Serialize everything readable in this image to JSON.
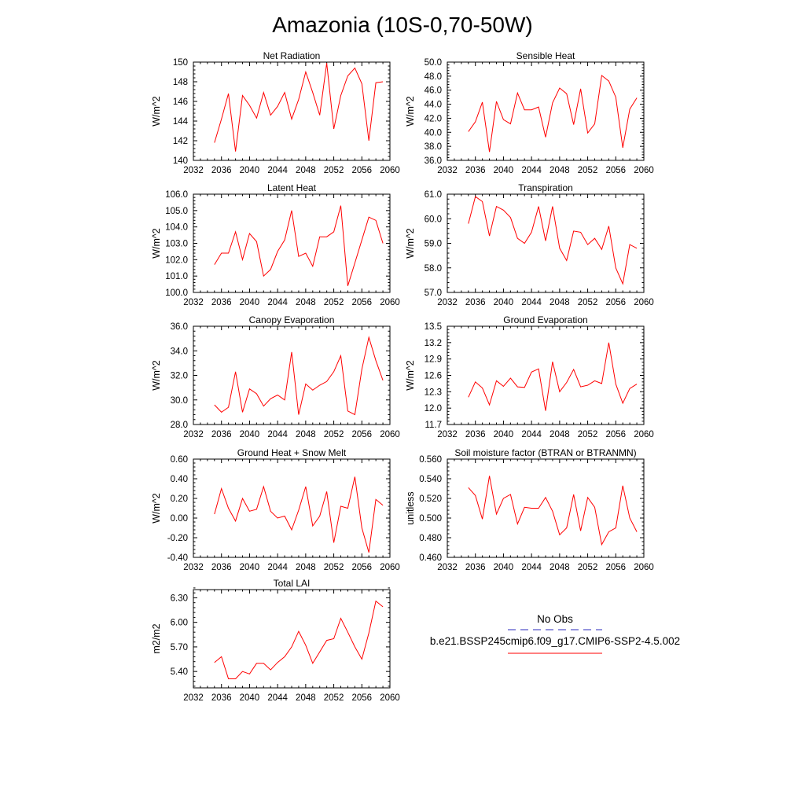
{
  "figure": {
    "title": "Amazonia (10S-0,70-50W)"
  },
  "legend": {
    "obs_label": "No Obs",
    "obs_color": "#2b2bbd",
    "model_label": "b.e21.BSSP245cmip6.f09_g17.CMIP6-SSP2-4.5.002",
    "model_color": "#ff0000"
  },
  "chart_data": [
    {
      "type": "line",
      "title": "Net Radiation",
      "ylabel": "W/m^2",
      "xlim": [
        2032,
        2060
      ],
      "ylim": [
        140,
        150
      ],
      "xticks": [
        2032,
        2036,
        2040,
        2044,
        2048,
        2052,
        2056,
        2060
      ],
      "xtick_labels": [
        "2032",
        "2036",
        "2040",
        "2044",
        "2048",
        "2052",
        "2056",
        "2060"
      ],
      "yticks": [
        140,
        142,
        144,
        146,
        148,
        150
      ],
      "ytick_labels": [
        "140",
        "142",
        "144",
        "146",
        "148",
        "150"
      ],
      "series": [
        {
          "name": "b.e21.BSSP245cmip6.f09_g17.CMIP6-SSP2-4.5.002",
          "color": "#ff0000",
          "x": [
            2035,
            2036,
            2037,
            2038,
            2039,
            2040,
            2041,
            2042,
            2043,
            2044,
            2045,
            2046,
            2047,
            2048,
            2049,
            2050,
            2051,
            2052,
            2053,
            2054,
            2055,
            2056,
            2057,
            2058,
            2059
          ],
          "y": [
            141.8,
            144.2,
            146.8,
            140.9,
            146.6,
            145.6,
            144.3,
            146.9,
            144.6,
            145.5,
            146.9,
            144.2,
            146.2,
            149.0,
            146.9,
            144.6,
            149.9,
            143.2,
            146.6,
            148.6,
            149.4,
            147.8,
            142.0,
            147.9,
            148.0
          ]
        }
      ]
    },
    {
      "type": "line",
      "title": "Sensible Heat",
      "ylabel": "W/m^2",
      "xlim": [
        2032,
        2060
      ],
      "ylim": [
        36.0,
        50.0
      ],
      "xticks": [
        2032,
        2036,
        2040,
        2044,
        2048,
        2052,
        2056,
        2060
      ],
      "xtick_labels": [
        "2032",
        "2036",
        "2040",
        "2044",
        "2048",
        "2052",
        "2056",
        "2060"
      ],
      "yticks": [
        36,
        38,
        40,
        42,
        44,
        46,
        48,
        50
      ],
      "ytick_labels": [
        "36.0",
        "38.0",
        "40.0",
        "42.0",
        "44.0",
        "46.0",
        "48.0",
        "50.0"
      ],
      "series": [
        {
          "name": "b.e21.BSSP245cmip6.f09_g17.CMIP6-SSP2-4.5.002",
          "color": "#ff0000",
          "x": [
            2035,
            2036,
            2037,
            2038,
            2039,
            2040,
            2041,
            2042,
            2043,
            2044,
            2045,
            2046,
            2047,
            2048,
            2049,
            2050,
            2051,
            2052,
            2053,
            2054,
            2055,
            2056,
            2057,
            2058,
            2059
          ],
          "y": [
            40.1,
            41.5,
            44.3,
            37.2,
            44.4,
            41.8,
            41.2,
            45.6,
            43.2,
            43.2,
            43.6,
            39.3,
            44.2,
            46.3,
            45.5,
            41.1,
            46.2,
            39.9,
            41.2,
            48.1,
            47.3,
            45.0,
            37.8,
            43.3,
            44.9
          ]
        }
      ]
    },
    {
      "type": "line",
      "title": "Latent Heat",
      "ylabel": "W/m^2",
      "xlim": [
        2032,
        2060
      ],
      "ylim": [
        100.0,
        106.0
      ],
      "xticks": [
        2032,
        2036,
        2040,
        2044,
        2048,
        2052,
        2056,
        2060
      ],
      "xtick_labels": [
        "2032",
        "2036",
        "2040",
        "2044",
        "2048",
        "2052",
        "2056",
        "2060"
      ],
      "yticks": [
        100,
        101,
        102,
        103,
        104,
        105,
        106
      ],
      "ytick_labels": [
        "100.0",
        "101.0",
        "102.0",
        "103.0",
        "104.0",
        "105.0",
        "106.0"
      ],
      "series": [
        {
          "name": "b.e21.BSSP245cmip6.f09_g17.CMIP6-SSP2-4.5.002",
          "color": "#ff0000",
          "x": [
            2035,
            2036,
            2037,
            2038,
            2039,
            2040,
            2041,
            2042,
            2043,
            2044,
            2045,
            2046,
            2047,
            2048,
            2049,
            2050,
            2051,
            2052,
            2053,
            2054,
            2055,
            2056,
            2057,
            2058,
            2059
          ],
          "y": [
            101.7,
            102.4,
            102.4,
            103.7,
            102.0,
            103.6,
            103.1,
            101.0,
            101.4,
            102.5,
            103.2,
            105.0,
            102.2,
            102.4,
            101.6,
            103.4,
            103.4,
            103.7,
            105.3,
            100.4,
            101.8,
            103.2,
            104.6,
            104.4,
            103.0
          ]
        }
      ]
    },
    {
      "type": "line",
      "title": "Transpiration",
      "ylabel": "W/m^2",
      "xlim": [
        2032,
        2060
      ],
      "ylim": [
        57.0,
        61.0
      ],
      "xticks": [
        2032,
        2036,
        2040,
        2044,
        2048,
        2052,
        2056,
        2060
      ],
      "xtick_labels": [
        "2032",
        "2036",
        "2040",
        "2044",
        "2048",
        "2052",
        "2056",
        "2060"
      ],
      "yticks": [
        57,
        58,
        59,
        60,
        61
      ],
      "ytick_labels": [
        "57.0",
        "58.0",
        "59.0",
        "60.0",
        "61.0"
      ],
      "series": [
        {
          "name": "b.e21.BSSP245cmip6.f09_g17.CMIP6-SSP2-4.5.002",
          "color": "#ff0000",
          "x": [
            2035,
            2036,
            2037,
            2038,
            2039,
            2040,
            2041,
            2042,
            2043,
            2044,
            2045,
            2046,
            2047,
            2048,
            2049,
            2050,
            2051,
            2052,
            2053,
            2054,
            2055,
            2056,
            2057,
            2058,
            2059
          ],
          "y": [
            59.8,
            60.9,
            60.7,
            59.3,
            60.5,
            60.35,
            60.05,
            59.2,
            59.0,
            59.45,
            60.5,
            59.1,
            60.5,
            58.8,
            58.3,
            59.5,
            59.45,
            58.95,
            59.2,
            58.75,
            59.7,
            58.0,
            57.35,
            58.95,
            58.8
          ]
        }
      ]
    },
    {
      "type": "line",
      "title": "Canopy Evaporation",
      "ylabel": "W/m^2",
      "xlim": [
        2032,
        2060
      ],
      "ylim": [
        28.0,
        36.0
      ],
      "xticks": [
        2032,
        2036,
        2040,
        2044,
        2048,
        2052,
        2056,
        2060
      ],
      "xtick_labels": [
        "2032",
        "2036",
        "2040",
        "2044",
        "2048",
        "2052",
        "2056",
        "2060"
      ],
      "yticks": [
        28,
        30,
        32,
        34,
        36
      ],
      "ytick_labels": [
        "28.0",
        "30.0",
        "32.0",
        "34.0",
        "36.0"
      ],
      "series": [
        {
          "name": "b.e21.BSSP245cmip6.f09_g17.CMIP6-SSP2-4.5.002",
          "color": "#ff0000",
          "x": [
            2035,
            2036,
            2037,
            2038,
            2039,
            2040,
            2041,
            2042,
            2043,
            2044,
            2045,
            2046,
            2047,
            2048,
            2049,
            2050,
            2051,
            2052,
            2053,
            2054,
            2055,
            2056,
            2057,
            2058,
            2059
          ],
          "y": [
            29.6,
            29.0,
            29.4,
            32.3,
            29.0,
            30.9,
            30.5,
            29.5,
            30.1,
            30.4,
            30.0,
            33.9,
            28.8,
            31.3,
            30.8,
            31.2,
            31.5,
            32.3,
            33.6,
            29.1,
            28.8,
            32.5,
            35.1,
            33.2,
            31.6
          ]
        }
      ]
    },
    {
      "type": "line",
      "title": "Ground Evaporation",
      "ylabel": "W/m^2",
      "xlim": [
        2032,
        2060
      ],
      "ylim": [
        11.7,
        13.5
      ],
      "xticks": [
        2032,
        2036,
        2040,
        2044,
        2048,
        2052,
        2056,
        2060
      ],
      "xtick_labels": [
        "2032",
        "2036",
        "2040",
        "2044",
        "2048",
        "2052",
        "2056",
        "2060"
      ],
      "yticks": [
        11.7,
        12.0,
        12.3,
        12.6,
        12.9,
        13.2,
        13.5
      ],
      "ytick_labels": [
        "11.7",
        "12.0",
        "12.3",
        "12.6",
        "12.9",
        "13.2",
        "13.5"
      ],
      "series": [
        {
          "name": "b.e21.BSSP245cmip6.f09_g17.CMIP6-SSP2-4.5.002",
          "color": "#ff0000",
          "x": [
            2035,
            2036,
            2037,
            2038,
            2039,
            2040,
            2041,
            2042,
            2043,
            2044,
            2045,
            2046,
            2047,
            2048,
            2049,
            2050,
            2051,
            2052,
            2053,
            2054,
            2055,
            2056,
            2057,
            2058,
            2059
          ],
          "y": [
            12.2,
            12.48,
            12.37,
            12.06,
            12.5,
            12.4,
            12.55,
            12.39,
            12.38,
            12.66,
            12.72,
            11.95,
            12.85,
            12.3,
            12.47,
            12.71,
            12.39,
            12.42,
            12.5,
            12.45,
            13.2,
            12.44,
            12.09,
            12.36,
            12.44
          ]
        }
      ]
    },
    {
      "type": "line",
      "title": "Ground Heat + Snow Melt",
      "ylabel": "W/m^2",
      "xlim": [
        2032,
        2060
      ],
      "ylim": [
        -0.4,
        0.6
      ],
      "xticks": [
        2032,
        2036,
        2040,
        2044,
        2048,
        2052,
        2056,
        2060
      ],
      "xtick_labels": [
        "2032",
        "2036",
        "2040",
        "2044",
        "2048",
        "2052",
        "2056",
        "2060"
      ],
      "yticks": [
        -0.4,
        -0.2,
        0.0,
        0.2,
        0.4,
        0.6
      ],
      "ytick_labels": [
        "-0.40",
        "-0.20",
        "0.00",
        "0.20",
        "0.40",
        "0.60"
      ],
      "series": [
        {
          "name": "b.e21.BSSP245cmip6.f09_g17.CMIP6-SSP2-4.5.002",
          "color": "#ff0000",
          "x": [
            2035,
            2036,
            2037,
            2038,
            2039,
            2040,
            2041,
            2042,
            2043,
            2044,
            2045,
            2046,
            2047,
            2048,
            2049,
            2050,
            2051,
            2052,
            2053,
            2054,
            2055,
            2056,
            2057,
            2058,
            2059
          ],
          "y": [
            0.04,
            0.3,
            0.1,
            -0.03,
            0.2,
            0.07,
            0.09,
            0.32,
            0.07,
            0.0,
            0.02,
            -0.12,
            0.08,
            0.32,
            -0.08,
            0.02,
            0.27,
            -0.25,
            0.12,
            0.1,
            0.42,
            -0.1,
            -0.35,
            0.19,
            0.13
          ]
        }
      ]
    },
    {
      "type": "line",
      "title": "Soil moisture factor (BTRAN or BTRANMN)",
      "ylabel": "unitless",
      "xlim": [
        2032,
        2060
      ],
      "ylim": [
        0.46,
        0.56
      ],
      "xticks": [
        2032,
        2036,
        2040,
        2044,
        2048,
        2052,
        2056,
        2060
      ],
      "xtick_labels": [
        "2032",
        "2036",
        "2040",
        "2044",
        "2048",
        "2052",
        "2056",
        "2060"
      ],
      "yticks": [
        0.46,
        0.48,
        0.5,
        0.52,
        0.54,
        0.56
      ],
      "ytick_labels": [
        "0.460",
        "0.480",
        "0.500",
        "0.520",
        "0.540",
        "0.560"
      ],
      "series": [
        {
          "name": "b.e21.BSSP245cmip6.f09_g17.CMIP6-SSP2-4.5.002",
          "color": "#ff0000",
          "x": [
            2035,
            2036,
            2037,
            2038,
            2039,
            2040,
            2041,
            2042,
            2043,
            2044,
            2045,
            2046,
            2047,
            2048,
            2049,
            2050,
            2051,
            2052,
            2053,
            2054,
            2055,
            2056,
            2057,
            2058,
            2059
          ],
          "y": [
            0.531,
            0.523,
            0.499,
            0.543,
            0.504,
            0.52,
            0.524,
            0.494,
            0.511,
            0.51,
            0.51,
            0.521,
            0.507,
            0.483,
            0.49,
            0.524,
            0.487,
            0.521,
            0.511,
            0.473,
            0.486,
            0.49,
            0.533,
            0.5,
            0.486
          ]
        }
      ]
    },
    {
      "type": "line",
      "title": "Total LAI",
      "ylabel": "m2/m2",
      "xlim": [
        2032,
        2060
      ],
      "ylim": [
        5.2,
        6.4
      ],
      "xticks": [
        2032,
        2036,
        2040,
        2044,
        2048,
        2052,
        2056,
        2060
      ],
      "xtick_labels": [
        "2032",
        "2036",
        "2040",
        "2044",
        "2048",
        "2052",
        "2056",
        "2060"
      ],
      "yticks": [
        5.4,
        5.7,
        6.0,
        6.3
      ],
      "ytick_labels": [
        "5.40",
        "5.70",
        "6.00",
        "6.30"
      ],
      "series": [
        {
          "name": "b.e21.BSSP245cmip6.f09_g17.CMIP6-SSP2-4.5.002",
          "color": "#ff0000",
          "x": [
            2035,
            2036,
            2037,
            2038,
            2039,
            2040,
            2041,
            2042,
            2043,
            2044,
            2045,
            2046,
            2047,
            2048,
            2049,
            2050,
            2051,
            2052,
            2053,
            2054,
            2055,
            2056,
            2057,
            2058,
            2059
          ],
          "y": [
            5.51,
            5.58,
            5.31,
            5.31,
            5.4,
            5.37,
            5.5,
            5.5,
            5.42,
            5.51,
            5.58,
            5.7,
            5.89,
            5.72,
            5.5,
            5.64,
            5.78,
            5.8,
            6.05,
            5.88,
            5.7,
            5.55,
            5.87,
            6.26,
            6.19
          ]
        }
      ]
    }
  ]
}
